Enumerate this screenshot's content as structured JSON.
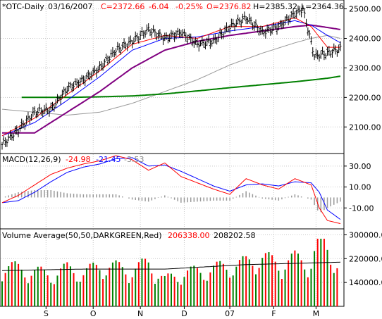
{
  "header": {
    "symbol": "*OTC-Daily",
    "date": "03/16/2007",
    "close": "C=2372.66",
    "change": "-6.04",
    "change_pct": "-0.25%",
    "open": "O=2376.82",
    "high": "H=2385.32",
    "low": "L=2364.36"
  },
  "macd_header": {
    "label": "MACD(12,26,9)",
    "v1": "-24.98",
    "v2": "-21.45",
    "v3": "-3.53"
  },
  "volume_header": {
    "label": "Volume Average(50,50,DARKGREEN,Red)",
    "v1": "206338.00",
    "v2": "208202.58"
  },
  "colors": {
    "price_bar": "#000000",
    "ma_fast_red": "#ff0000",
    "ma_blue": "#0000ff",
    "ma_purple": "#800080",
    "ma_gray": "#999999",
    "ma_long_green": "#008000",
    "macd_line": "#ff0000",
    "signal_line": "#0000ff",
    "histogram": "#999999",
    "volume_up": "#008000",
    "volume_down": "#ff0000",
    "volume_avg": "#000000",
    "header_neg": "#ff0000"
  },
  "chart_data": [
    {
      "type": "line",
      "title": "*OTC-Daily",
      "x_tick_labels": [
        "S",
        "O",
        "N",
        "D",
        "07",
        "F",
        "M"
      ],
      "y_ticks": [
        2100,
        2200,
        2300,
        2400,
        2500
      ],
      "ylim": [
        2010,
        2530
      ],
      "series": [
        {
          "name": "Price",
          "style": "ohlc-bars",
          "x": [
            0,
            10,
            20,
            30,
            40,
            50,
            60,
            70,
            80,
            90,
            100,
            110,
            120,
            130,
            140,
            150,
            160,
            170,
            179,
            185,
            192,
            200,
            208
          ],
          "values": [
            2040,
            2090,
            2150,
            2160,
            2230,
            2260,
            2300,
            2360,
            2390,
            2430,
            2400,
            2420,
            2380,
            2390,
            2440,
            2470,
            2420,
            2440,
            2480,
            2500,
            2340,
            2350,
            2365
          ]
        },
        {
          "name": "",
          "style": "ma-red",
          "x": [
            0,
            20,
            40,
            60,
            80,
            100,
            120,
            140,
            160,
            180,
            190,
            200,
            208
          ],
          "values": [
            2070,
            2130,
            2210,
            2290,
            2380,
            2410,
            2400,
            2440,
            2440,
            2470,
            2440,
            2370,
            2370
          ]
        },
        {
          "name": "",
          "style": "ma-blue",
          "x": [
            0,
            20,
            40,
            60,
            80,
            100,
            120,
            140,
            160,
            180,
            190,
            200,
            208
          ],
          "values": [
            2070,
            2115,
            2190,
            2270,
            2360,
            2400,
            2405,
            2425,
            2440,
            2460,
            2445,
            2410,
            2385
          ]
        },
        {
          "name": "",
          "style": "ma-purple",
          "x": [
            0,
            20,
            40,
            60,
            80,
            100,
            120,
            140,
            160,
            180,
            190,
            200,
            208
          ],
          "values": [
            2080,
            2080,
            2150,
            2220,
            2300,
            2360,
            2390,
            2410,
            2425,
            2440,
            2445,
            2437,
            2430
          ]
        },
        {
          "name": "",
          "style": "ma-gray",
          "x": [
            0,
            20,
            40,
            60,
            80,
            100,
            120,
            140,
            160,
            180,
            190,
            200,
            208
          ],
          "values": [
            2160,
            2150,
            2140,
            2150,
            2180,
            2220,
            2260,
            2310,
            2350,
            2385,
            2400,
            2410,
            2400
          ]
        },
        {
          "name": "",
          "style": "ma-green",
          "x": [
            12,
            40,
            60,
            80,
            100,
            120,
            140,
            160,
            180,
            200,
            208
          ],
          "values": [
            2200,
            2200,
            2202,
            2205,
            2212,
            2222,
            2233,
            2243,
            2253,
            2265,
            2272
          ]
        }
      ]
    },
    {
      "type": "line",
      "title": "MACD(12,26,9)",
      "x_tick_labels": [
        "S",
        "O",
        "N",
        "D",
        "07",
        "F",
        "M"
      ],
      "y_ticks": [
        -10,
        10,
        30
      ],
      "ylim": [
        -30,
        42
      ],
      "series": [
        {
          "name": "",
          "style": "macd-red",
          "x": [
            0,
            10,
            20,
            30,
            40,
            50,
            60,
            70,
            80,
            90,
            100,
            110,
            120,
            130,
            140,
            150,
            160,
            170,
            180,
            190,
            195,
            200,
            208
          ],
          "values": [
            -5,
            2,
            12,
            22,
            28,
            32,
            35,
            40,
            36,
            26,
            33,
            20,
            14,
            8,
            3,
            18,
            12,
            8,
            18,
            12,
            -10,
            -22,
            -25
          ]
        },
        {
          "name": "",
          "style": "signal-blue",
          "x": [
            0,
            10,
            20,
            30,
            40,
            50,
            60,
            70,
            80,
            90,
            100,
            110,
            120,
            130,
            140,
            150,
            160,
            170,
            180,
            190,
            195,
            200,
            208
          ],
          "values": [
            -5,
            -3,
            5,
            15,
            24,
            29,
            32,
            37,
            38,
            30,
            31,
            25,
            18,
            11,
            6,
            12,
            13,
            11,
            15,
            14,
            5,
            -12,
            -21
          ]
        }
      ]
    },
    {
      "type": "bar",
      "title": "Volume Average(50,50,DARKGREEN,Red)",
      "x_tick_labels": [
        "S",
        "O",
        "N",
        "D",
        "07",
        "F",
        "M"
      ],
      "y_ticks": [
        140000,
        220000,
        300000
      ],
      "ylim": [
        60000,
        320000
      ],
      "series": [
        {
          "name": "Volume",
          "style": "volume-bars",
          "x": [
            0,
            10,
            20,
            30,
            40,
            50,
            60,
            70,
            80,
            90,
            100,
            110,
            120,
            130,
            140,
            150,
            160,
            170,
            180,
            190,
            195,
            200,
            206
          ],
          "values": [
            200000,
            190000,
            180000,
            170000,
            190000,
            175000,
            200000,
            195000,
            185000,
            210000,
            150000,
            175000,
            180000,
            190000,
            200000,
            210000,
            230000,
            205000,
            225000,
            210000,
            295000,
            260000,
            206338
          ]
        },
        {
          "name": "",
          "style": "volume-average",
          "x": [
            0,
            50,
            100,
            150,
            208
          ],
          "values": [
            180000,
            185000,
            185000,
            200000,
            208202
          ]
        }
      ]
    }
  ]
}
